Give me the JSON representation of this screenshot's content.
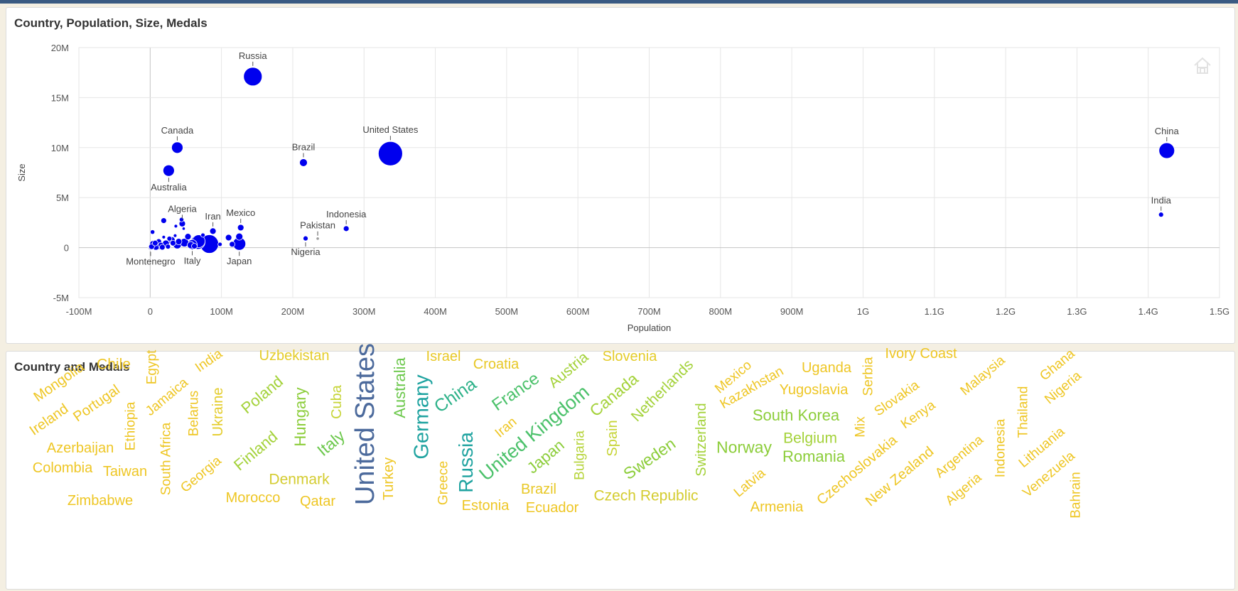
{
  "panels": {
    "top_title": "Country, Population, Size, Medals",
    "bottom_title": "Country and Medals"
  },
  "chart_data": [
    {
      "type": "scatter",
      "title": "Country, Population, Size, Medals",
      "xlabel": "Population",
      "ylabel": "Size",
      "xlim": [
        -100000000,
        1500000000
      ],
      "ylim": [
        -5000000,
        20000000
      ],
      "x_ticks": [
        -100000000,
        0,
        100000000,
        200000000,
        300000000,
        400000000,
        500000000,
        600000000,
        700000000,
        800000000,
        900000000,
        1000000000,
        1100000000,
        1200000000,
        1300000000,
        1400000000,
        1500000000
      ],
      "x_tick_labels": [
        "-100M",
        "0",
        "100M",
        "200M",
        "300M",
        "400M",
        "500M",
        "600M",
        "700M",
        "800M",
        "900M",
        "1G",
        "1.1G",
        "1.2G",
        "1.3G",
        "1.4G",
        "1.5G"
      ],
      "y_ticks": [
        -5000000,
        0,
        5000000,
        10000000,
        15000000,
        20000000
      ],
      "y_tick_labels": [
        "-5M",
        "0",
        "5M",
        "10M",
        "15M",
        "20M"
      ],
      "grid": true,
      "point_color": "#0000ee",
      "points": [
        {
          "label": "Russia",
          "x": 144000000,
          "y": 17100000,
          "size": 13,
          "label_pos": "above"
        },
        {
          "label": "United States",
          "x": 337000000,
          "y": 9400000,
          "size": 17,
          "label_pos": "above"
        },
        {
          "label": "China",
          "x": 1426000000,
          "y": 9700000,
          "size": 11,
          "label_pos": "above"
        },
        {
          "label": "Canada",
          "x": 38000000,
          "y": 10000000,
          "size": 8,
          "label_pos": "above"
        },
        {
          "label": "Australia",
          "x": 26000000,
          "y": 7700000,
          "size": 8,
          "label_pos": "below"
        },
        {
          "label": "Brazil",
          "x": 215000000,
          "y": 8500000,
          "size": 5.5,
          "label_pos": "above"
        },
        {
          "label": "India",
          "x": 1418000000,
          "y": 3300000,
          "size": 3.5,
          "label_pos": "above"
        },
        {
          "label": "Indonesia",
          "x": 275000000,
          "y": 1900000,
          "size": 4,
          "label_pos": "above"
        },
        {
          "label": "Pakistan",
          "x": 235000000,
          "y": 900000,
          "size": 2.2,
          "label_pos": "above",
          "color": "#9a9a9a"
        },
        {
          "label": "Nigeria",
          "x": 218000000,
          "y": 920000,
          "size": 3.5,
          "label_pos": "below"
        },
        {
          "label": "Mexico",
          "x": 127000000,
          "y": 2000000,
          "size": 4.5,
          "label_pos": "above"
        },
        {
          "label": "Iran",
          "x": 88000000,
          "y": 1650000,
          "size": 4.5,
          "label_pos": "above"
        },
        {
          "label": "Algeria",
          "x": 45000000,
          "y": 2400000,
          "size": 4.5,
          "label_pos": "above"
        },
        {
          "label": "Japan",
          "x": 125000000,
          "y": 380000,
          "size": 9,
          "label_pos": "below"
        },
        {
          "label": "Italy",
          "x": 59000000,
          "y": 300000,
          "size": 7,
          "label_pos": "below"
        },
        {
          "label": "Montenegro",
          "x": 600000,
          "y": 14000,
          "size": 4,
          "label_pos": "below",
          "color": "#c8c8f0"
        },
        {
          "x": 83000000,
          "y": 360000,
          "size": 13
        },
        {
          "x": 67000000,
          "y": 550000,
          "size": 10
        },
        {
          "x": 68000000,
          "y": 640000,
          "size": 9
        },
        {
          "x": 110000000,
          "y": 1000000,
          "size": 4.5
        },
        {
          "x": 115000000,
          "y": 340000,
          "size": 4
        },
        {
          "x": 125000000,
          "y": 1100000,
          "size": 5
        },
        {
          "x": 19000000,
          "y": 2700000,
          "size": 4
        },
        {
          "x": 3300000,
          "y": 1560000,
          "size": 3.2
        },
        {
          "x": 36000000,
          "y": 2150000,
          "size": 2.5
        },
        {
          "x": 47000000,
          "y": 1900000,
          "size": 2.2
        },
        {
          "x": 44000000,
          "y": 2800000,
          "size": 3.2
        },
        {
          "x": 38000000,
          "y": 310000,
          "size": 6
        },
        {
          "x": 48000000,
          "y": 500000,
          "size": 6
        },
        {
          "x": 53000000,
          "y": 1100000,
          "size": 4.5
        },
        {
          "x": 30000000,
          "y": 750000,
          "size": 5
        },
        {
          "x": 22000000,
          "y": 400000,
          "size": 5
        },
        {
          "x": 10000000,
          "y": 200000,
          "size": 6
        },
        {
          "x": 5000000,
          "y": 300000,
          "size": 6
        },
        {
          "x": 8000000,
          "y": 100000,
          "size": 5
        },
        {
          "x": 12000000,
          "y": 600000,
          "size": 4
        },
        {
          "x": 15000000,
          "y": 250000,
          "size": 4
        },
        {
          "x": 17000000,
          "y": 40000,
          "size": 4
        },
        {
          "x": 40000000,
          "y": 600000,
          "size": 4.5
        },
        {
          "x": 32000000,
          "y": 450000,
          "size": 4
        },
        {
          "x": 27000000,
          "y": 900000,
          "size": 3.5
        },
        {
          "x": 57000000,
          "y": 250000,
          "size": 5
        },
        {
          "x": 62000000,
          "y": 150000,
          "size": 4
        },
        {
          "x": 2000000,
          "y": 100000,
          "size": 4
        },
        {
          "x": 7000000,
          "y": 450000,
          "size": 4
        },
        {
          "x": 25000000,
          "y": 100000,
          "size": 3.5
        },
        {
          "x": 35000000,
          "y": 1200000,
          "size": 2.5
        },
        {
          "x": 19000000,
          "y": 1050000,
          "size": 2.5
        },
        {
          "x": 74000000,
          "y": 1250000,
          "size": 3
        },
        {
          "x": 98000000,
          "y": 330000,
          "size": 3
        }
      ]
    },
    {
      "type": "wordcloud",
      "title": "Country and Medals",
      "words": [
        {
          "text": "United States",
          "x": 514,
          "y": 597,
          "size": 38,
          "rot": -90,
          "color": "#4c6a9c"
        },
        {
          "text": "Germany",
          "x": 594,
          "y": 587,
          "size": 29,
          "rot": -90,
          "color": "#1fa3a0"
        },
        {
          "text": "Russia",
          "x": 656,
          "y": 651,
          "size": 28,
          "rot": -90,
          "color": "#1fa3a0"
        },
        {
          "text": "China",
          "x": 641,
          "y": 557,
          "size": 25,
          "rot": -35,
          "color": "#2fb28a"
        },
        {
          "text": "United Kingdom",
          "x": 752,
          "y": 610,
          "size": 27,
          "rot": -40,
          "color": "#4bc16a"
        },
        {
          "text": "France",
          "x": 726,
          "y": 552,
          "size": 24,
          "rot": -35,
          "color": "#4bc16a"
        },
        {
          "text": "Italy",
          "x": 466,
          "y": 624,
          "size": 23,
          "rot": -40,
          "color": "#6cc84c"
        },
        {
          "text": "Australia",
          "x": 563,
          "y": 546,
          "size": 22,
          "rot": -90,
          "color": "#6cc84c"
        },
        {
          "text": "Hungary",
          "x": 423,
          "y": 587,
          "size": 22,
          "rot": -90,
          "color": "#8ccd3a"
        },
        {
          "text": "Sweden",
          "x": 914,
          "y": 646,
          "size": 23,
          "rot": -35,
          "color": "#8ccd3a"
        },
        {
          "text": "Japan",
          "x": 768,
          "y": 643,
          "size": 22,
          "rot": -40,
          "color": "#8ccd3a"
        },
        {
          "text": "Norway",
          "x": 1047,
          "y": 630,
          "size": 23,
          "rot": 0,
          "color": "#8ccd3a"
        },
        {
          "text": "South Korea",
          "x": 1120,
          "y": 585,
          "size": 22,
          "rot": 0,
          "color": "#8ccd3a"
        },
        {
          "text": "Romania",
          "x": 1145,
          "y": 643,
          "size": 22,
          "rot": 0,
          "color": "#8ccd3a"
        },
        {
          "text": "Belgium",
          "x": 1140,
          "y": 617,
          "size": 21,
          "rot": 0,
          "color": "#a4d23a"
        },
        {
          "text": "Netherlands",
          "x": 932,
          "y": 550,
          "size": 21,
          "rot": -45,
          "color": "#a4d23a"
        },
        {
          "text": "Canada",
          "x": 864,
          "y": 556,
          "size": 23,
          "rot": -40,
          "color": "#a4d23a"
        },
        {
          "text": "Finland",
          "x": 360,
          "y": 635,
          "size": 22,
          "rot": -40,
          "color": "#a4d23a"
        },
        {
          "text": "Poland",
          "x": 369,
          "y": 556,
          "size": 22,
          "rot": -40,
          "color": "#a4d23a"
        },
        {
          "text": "Austria",
          "x": 800,
          "y": 521,
          "size": 21,
          "rot": -40,
          "color": "#a4d23a"
        },
        {
          "text": "Switzerland",
          "x": 987,
          "y": 619,
          "size": 20,
          "rot": -90,
          "color": "#a4d23a"
        },
        {
          "text": "Bulgaria",
          "x": 816,
          "y": 641,
          "size": 19,
          "rot": -90,
          "color": "#b6d43a"
        },
        {
          "text": "Spain",
          "x": 862,
          "y": 617,
          "size": 20,
          "rot": -90,
          "color": "#c6d436"
        },
        {
          "text": "Cuba",
          "x": 474,
          "y": 566,
          "size": 20,
          "rot": -90,
          "color": "#c6d436"
        },
        {
          "text": "Denmark",
          "x": 421,
          "y": 675,
          "size": 21,
          "rot": 0,
          "color": "#d4cc30"
        },
        {
          "text": "Czech Republic",
          "x": 909,
          "y": 698,
          "size": 21,
          "rot": 0,
          "color": "#d4cc30"
        },
        {
          "text": "Uzbekistan",
          "x": 414,
          "y": 501,
          "size": 20,
          "rot": 0,
          "color": "#e4cc2a"
        },
        {
          "text": "Slovenia",
          "x": 886,
          "y": 502,
          "size": 20,
          "rot": 0,
          "color": "#e4cc2a"
        },
        {
          "text": "Ukraine",
          "x": 307,
          "y": 580,
          "size": 20,
          "rot": -90,
          "color": "#e4cc2a"
        },
        {
          "text": "Brazil",
          "x": 758,
          "y": 689,
          "size": 20,
          "rot": 0,
          "color": "#e8c826"
        },
        {
          "text": "Croatia",
          "x": 698,
          "y": 513,
          "size": 20,
          "rot": 0,
          "color": "#e8c826"
        },
        {
          "text": "Israel",
          "x": 624,
          "y": 502,
          "size": 20,
          "rot": 0,
          "color": "#e8c826"
        },
        {
          "text": "Morocco",
          "x": 356,
          "y": 701,
          "size": 20,
          "rot": 0,
          "color": "#eec624"
        },
        {
          "text": "Qatar",
          "x": 447,
          "y": 706,
          "size": 20,
          "rot": 0,
          "color": "#eec624"
        },
        {
          "text": "Estonia",
          "x": 683,
          "y": 712,
          "size": 20,
          "rot": 0,
          "color": "#eec624"
        },
        {
          "text": "Ecuador",
          "x": 777,
          "y": 715,
          "size": 20,
          "rot": 0,
          "color": "#eec624"
        },
        {
          "text": "Turkey",
          "x": 547,
          "y": 674,
          "size": 20,
          "rot": -90,
          "color": "#eec624"
        },
        {
          "text": "Greece",
          "x": 624,
          "y": 680,
          "size": 19,
          "rot": -90,
          "color": "#eec624"
        },
        {
          "text": "Iran",
          "x": 712,
          "y": 602,
          "size": 19,
          "rot": -40,
          "color": "#eec624"
        },
        {
          "text": "Mexico",
          "x": 1032,
          "y": 531,
          "size": 19,
          "rot": -40,
          "color": "#eec624"
        },
        {
          "text": "Kazakhstan",
          "x": 1058,
          "y": 546,
          "size": 19,
          "rot": -30,
          "color": "#eec624"
        },
        {
          "text": "Uganda",
          "x": 1163,
          "y": 518,
          "size": 20,
          "rot": 0,
          "color": "#eec624"
        },
        {
          "text": "Yugoslavia",
          "x": 1145,
          "y": 549,
          "size": 20,
          "rot": 0,
          "color": "#eec624"
        },
        {
          "text": "Serbia",
          "x": 1222,
          "y": 530,
          "size": 19,
          "rot": -90,
          "color": "#eec624"
        },
        {
          "text": "Ivory Coast",
          "x": 1296,
          "y": 498,
          "size": 20,
          "rot": 0,
          "color": "#eec624"
        },
        {
          "text": "Slovakia",
          "x": 1262,
          "y": 561,
          "size": 19,
          "rot": -35,
          "color": "#eec624"
        },
        {
          "text": "Mix",
          "x": 1211,
          "y": 601,
          "size": 19,
          "rot": -90,
          "color": "#eec624"
        },
        {
          "text": "Kenya",
          "x": 1292,
          "y": 584,
          "size": 19,
          "rot": -35,
          "color": "#eec624"
        },
        {
          "text": "Czechoslovakia",
          "x": 1206,
          "y": 662,
          "size": 20,
          "rot": -40,
          "color": "#eec624"
        },
        {
          "text": "New Zealand",
          "x": 1266,
          "y": 671,
          "size": 20,
          "rot": -40,
          "color": "#eec624"
        },
        {
          "text": "Latvia",
          "x": 1055,
          "y": 680,
          "size": 19,
          "rot": -40,
          "color": "#eec624"
        },
        {
          "text": "Armenia",
          "x": 1093,
          "y": 714,
          "size": 20,
          "rot": 0,
          "color": "#eec624"
        },
        {
          "text": "Malaysia",
          "x": 1383,
          "y": 529,
          "size": 19,
          "rot": -40,
          "color": "#eec624"
        },
        {
          "text": "Ghana",
          "x": 1488,
          "y": 514,
          "size": 19,
          "rot": -40,
          "color": "#eec624"
        },
        {
          "text": "Nigeria",
          "x": 1496,
          "y": 546,
          "size": 19,
          "rot": -40,
          "color": "#eec624"
        },
        {
          "text": "Thailand",
          "x": 1440,
          "y": 580,
          "size": 19,
          "rot": -90,
          "color": "#eec624"
        },
        {
          "text": "Argentina",
          "x": 1350,
          "y": 643,
          "size": 19,
          "rot": -40,
          "color": "#eec624"
        },
        {
          "text": "Indonesia",
          "x": 1408,
          "y": 631,
          "size": 19,
          "rot": -90,
          "color": "#eec624"
        },
        {
          "text": "Lithuania",
          "x": 1466,
          "y": 630,
          "size": 19,
          "rot": -40,
          "color": "#eec624"
        },
        {
          "text": "Algeria",
          "x": 1356,
          "y": 689,
          "size": 19,
          "rot": -40,
          "color": "#eec624"
        },
        {
          "text": "Venezuela",
          "x": 1476,
          "y": 668,
          "size": 19,
          "rot": -40,
          "color": "#eec624"
        },
        {
          "text": "Bahrain",
          "x": 1514,
          "y": 697,
          "size": 19,
          "rot": -90,
          "color": "#eec624"
        },
        {
          "text": "Mongolia",
          "x": 83,
          "y": 538,
          "size": 20,
          "rot": -35,
          "color": "#eec624"
        },
        {
          "text": "Chile",
          "x": 160,
          "y": 513,
          "size": 21,
          "rot": 0,
          "color": "#eec624"
        },
        {
          "text": "Egypt",
          "x": 214,
          "y": 517,
          "size": 19,
          "rot": -90,
          "color": "#eec624"
        },
        {
          "text": "India",
          "x": 294,
          "y": 508,
          "size": 19,
          "rot": -35,
          "color": "#eec624"
        },
        {
          "text": "Portugal",
          "x": 136,
          "y": 568,
          "size": 20,
          "rot": -35,
          "color": "#eec624"
        },
        {
          "text": "Jamaica",
          "x": 235,
          "y": 559,
          "size": 19,
          "rot": -40,
          "color": "#eec624"
        },
        {
          "text": "Ireland",
          "x": 69,
          "y": 591,
          "size": 20,
          "rot": -35,
          "color": "#eec624"
        },
        {
          "text": "Ethiopia",
          "x": 184,
          "y": 600,
          "size": 19,
          "rot": -90,
          "color": "#eec624"
        },
        {
          "text": "Belarus",
          "x": 273,
          "y": 582,
          "size": 19,
          "rot": -90,
          "color": "#eec624"
        },
        {
          "text": "Azerbaijan",
          "x": 113,
          "y": 631,
          "size": 20,
          "rot": 0,
          "color": "#eec624"
        },
        {
          "text": "South Africa",
          "x": 234,
          "y": 646,
          "size": 19,
          "rot": -90,
          "color": "#eec624"
        },
        {
          "text": "Colombia",
          "x": 88,
          "y": 659,
          "size": 20,
          "rot": 0,
          "color": "#eec624"
        },
        {
          "text": "Taiwan",
          "x": 176,
          "y": 664,
          "size": 20,
          "rot": 0,
          "color": "#eec624"
        },
        {
          "text": "Georgia",
          "x": 283,
          "y": 668,
          "size": 19,
          "rot": -40,
          "color": "#eec624"
        },
        {
          "text": "Zimbabwe",
          "x": 141,
          "y": 705,
          "size": 20,
          "rot": 0,
          "color": "#eec624"
        }
      ]
    }
  ]
}
